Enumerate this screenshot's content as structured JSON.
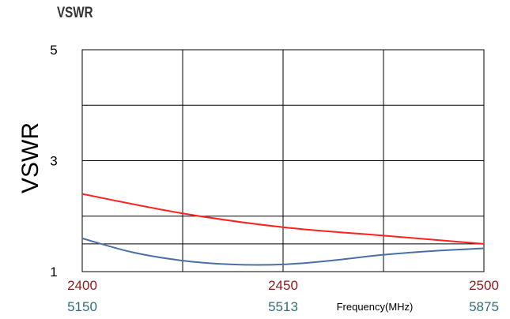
{
  "title": "VSWR",
  "colors": {
    "band_low": "#ff2020",
    "band_high": "#4a6fa5",
    "low_tick": "#8b1a1a",
    "high_tick": "#2e6e7a",
    "grid": "#000000"
  },
  "chart_data": {
    "type": "line",
    "title": "VSWR",
    "ylabel": "VSWR",
    "xlabel": "Frequency(MHz)",
    "ylim": [
      1,
      5
    ],
    "yticks": [
      "1",
      "3",
      "5"
    ],
    "grid": true,
    "x_axis_low_band": {
      "ticks": [
        "2400",
        "2450",
        "2500"
      ],
      "range": [
        2400,
        2500
      ]
    },
    "x_axis_high_band": {
      "ticks": [
        "5150",
        "5513",
        "5875"
      ],
      "range": [
        5150,
        5875
      ]
    },
    "series": [
      {
        "axis": "low_band",
        "color": "#ff2020",
        "x": [
          2400,
          2425,
          2450,
          2475,
          2500
        ],
        "y": [
          2.4,
          2.05,
          1.8,
          1.65,
          1.5
        ]
      },
      {
        "axis": "high_band",
        "color": "#4a6fa5",
        "x": [
          5150,
          5240,
          5330,
          5420,
          5513,
          5600,
          5690,
          5780,
          5875
        ],
        "y": [
          1.6,
          1.35,
          1.2,
          1.13,
          1.13,
          1.2,
          1.3,
          1.37,
          1.42
        ]
      }
    ]
  }
}
